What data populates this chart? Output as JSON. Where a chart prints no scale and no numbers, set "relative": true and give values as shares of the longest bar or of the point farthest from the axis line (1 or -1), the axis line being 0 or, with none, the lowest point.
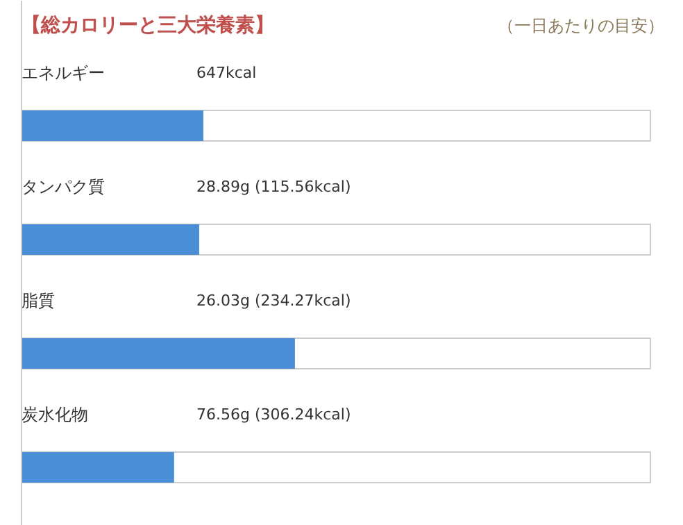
{
  "chart_data": {
    "type": "bar",
    "orientation": "horizontal",
    "relative": true,
    "title": "【総カロリーと三大栄養素】",
    "subtitle": "（一日あたりの目安）",
    "categories": [
      "エネルギー",
      "タンパク質",
      "脂質",
      "炭水化物"
    ],
    "values": [
      0.665,
      0.65,
      1,
      0.558
    ],
    "annotations": [
      "647kcal",
      "28.89g (115.56kcal)",
      "26.03g (234.27kcal)",
      "76.56g (306.24kcal)"
    ],
    "color": "#4a8fd6",
    "grid": false
  }
}
